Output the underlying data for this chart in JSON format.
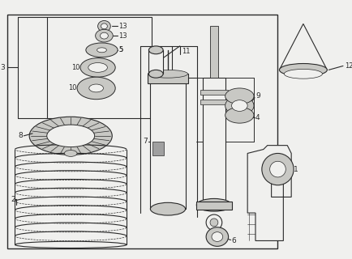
{
  "bg_color": "#e8e8e4",
  "line_color": "#2a2a2a",
  "white": "#f0f0ee",
  "gray_light": "#c8c8c4",
  "gray_mid": "#a0a0a0"
}
